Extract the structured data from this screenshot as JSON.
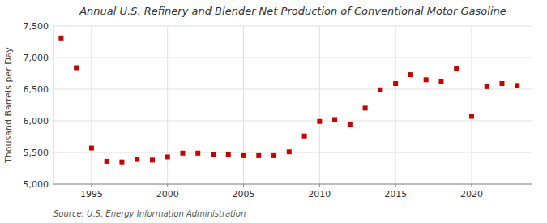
{
  "chart_data": {
    "type": "scatter",
    "title": "Annual U.S. Refinery and Blender Net Production of Conventional Motor Gasoline",
    "ylabel": "Thousand Barrels per Day",
    "source": "Source: U.S. Energy Information Administration",
    "x": [
      1993,
      1994,
      1995,
      1996,
      1997,
      1998,
      1999,
      2000,
      2001,
      2002,
      2003,
      2004,
      2005,
      2006,
      2007,
      2008,
      2009,
      2010,
      2011,
      2012,
      2013,
      2014,
      2015,
      2016,
      2017,
      2018,
      2019,
      2020,
      2021,
      2022,
      2023
    ],
    "values": [
      7310,
      6840,
      5570,
      5360,
      5350,
      5390,
      5380,
      5430,
      5490,
      5490,
      5470,
      5470,
      5450,
      5450,
      5450,
      5510,
      5760,
      5990,
      6020,
      5940,
      6200,
      6490,
      6590,
      6730,
      6650,
      6620,
      6820,
      6070,
      6540,
      6590,
      6560
    ],
    "color": "#cc0000",
    "marker": "square",
    "xlim": [
      1992.5,
      2024
    ],
    "xticks": [
      1995,
      2000,
      2005,
      2010,
      2015,
      2020
    ],
    "ylim": [
      5000,
      7500
    ],
    "yticks": [
      {
        "value": 5000,
        "label": "5,000"
      },
      {
        "value": 5500,
        "label": "5,500"
      },
      {
        "value": 6000,
        "label": "6,000"
      },
      {
        "value": 6500,
        "label": "6,500"
      },
      {
        "value": 7000,
        "label": "7,000"
      },
      {
        "value": 7500,
        "label": "7,500"
      }
    ],
    "grid": true
  }
}
